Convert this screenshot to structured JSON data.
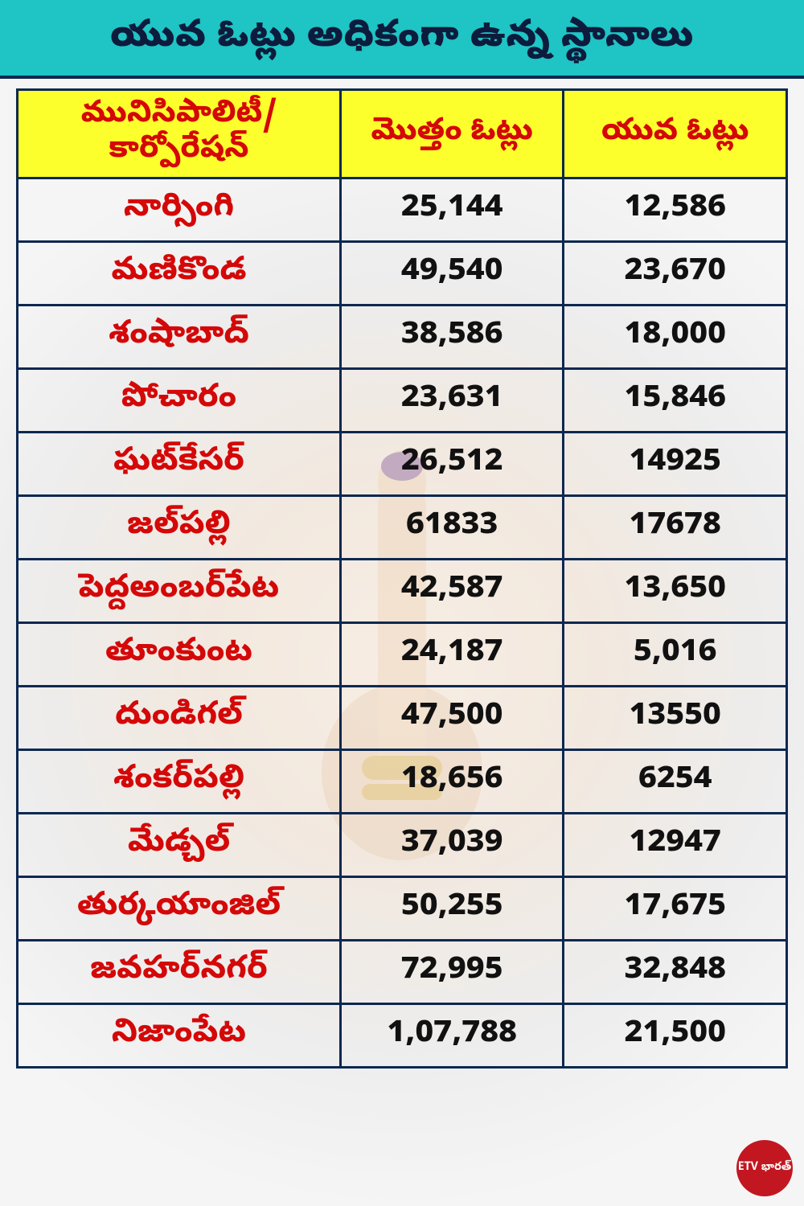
{
  "title": "యువ ఓట్లు అధికంగా ఉన్న స్థానాలు",
  "colors": {
    "title_bg": "#1fc4c4",
    "title_text": "#0d1b3d",
    "header_bg": "#fcff2b",
    "header_text": "#d40808",
    "border": "#0d2850",
    "place_text": "#d40808",
    "num_text": "#111111",
    "logo_bg": "#c21720"
  },
  "table": {
    "columns": [
      "మునిసిపాలిటీ/\nకార్పోరేషన్",
      "మొత్తం ఓట్లు",
      "యువ ఓట్లు"
    ],
    "rows": [
      [
        "నార్సింగి",
        "25,144",
        "12,586"
      ],
      [
        "మణికొండ",
        "49,540",
        "23,670"
      ],
      [
        "శంషాబాద్",
        "38,586",
        "18,000"
      ],
      [
        "పోచారం",
        "23,631",
        "15,846"
      ],
      [
        "ఘట్‌కేసర్",
        "26,512",
        "14925"
      ],
      [
        "జల్‌పల్లి",
        "61833",
        "17678"
      ],
      [
        "పెద్దఅంబర్‌పేట",
        "42,587",
        "13,650"
      ],
      [
        "తూంకుంట",
        "24,187",
        "5,016"
      ],
      [
        "దుండిగల్",
        "47,500",
        "13550"
      ],
      [
        "శంకర్‌పల్లి",
        "18,656",
        "6254"
      ],
      [
        "మేడ్చల్",
        "37,039",
        "12947"
      ],
      [
        "తుర్కయాంజిల్",
        "50,255",
        "17,675"
      ],
      [
        "జవహర్‌నగర్",
        "72,995",
        "32,848"
      ],
      [
        "నిజాంపేట",
        "1,07,788",
        "21,500"
      ]
    ],
    "col_widths_pct": [
      42,
      29,
      29
    ],
    "header_fontsize": 38,
    "cell_fontsize": 40
  },
  "logo_text": "ETV\nభారత్"
}
